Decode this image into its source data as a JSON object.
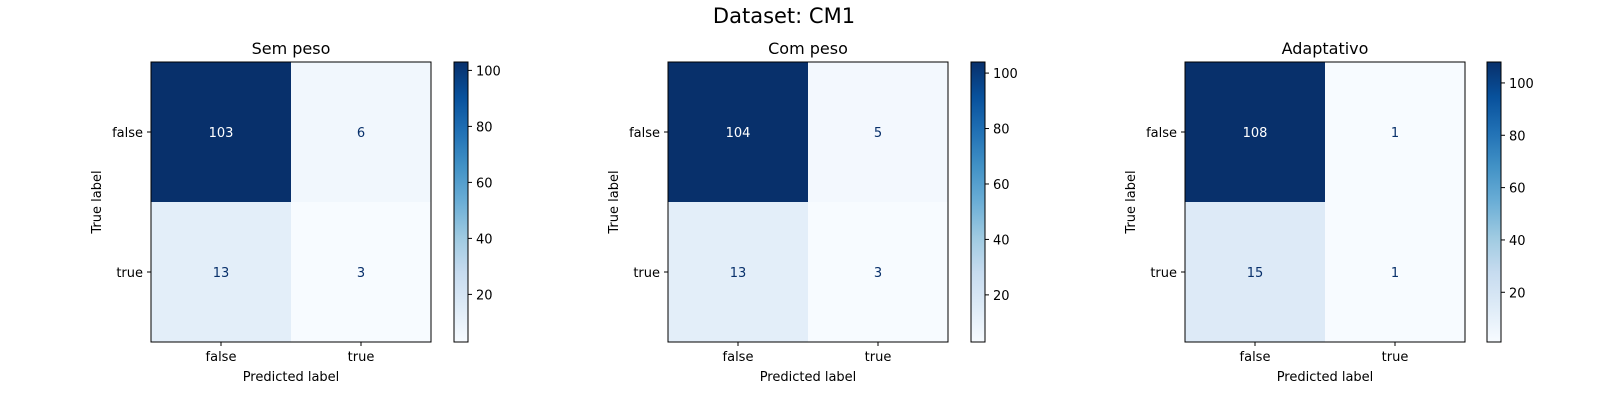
{
  "figure": {
    "title": "Dataset: CM1"
  },
  "chart_data": [
    {
      "type": "heatmap",
      "title": "Sem peso",
      "xlabel": "Predicted label",
      "ylabel": "True label",
      "x_categories": [
        "false",
        "true"
      ],
      "y_categories": [
        "false",
        "true"
      ],
      "values": [
        [
          103,
          6
        ],
        [
          13,
          3
        ]
      ],
      "colormap": "Blues",
      "colorbar_range": [
        3,
        103
      ],
      "colorbar_ticks": [
        20,
        40,
        60,
        80,
        100
      ]
    },
    {
      "type": "heatmap",
      "title": "Com peso",
      "xlabel": "Predicted label",
      "ylabel": "True label",
      "x_categories": [
        "false",
        "true"
      ],
      "y_categories": [
        "false",
        "true"
      ],
      "values": [
        [
          104,
          5
        ],
        [
          13,
          3
        ]
      ],
      "colormap": "Blues",
      "colorbar_range": [
        3,
        104
      ],
      "colorbar_ticks": [
        20,
        40,
        60,
        80,
        100
      ]
    },
    {
      "type": "heatmap",
      "title": "Adaptativo",
      "xlabel": "Predicted label",
      "ylabel": "True label",
      "x_categories": [
        "false",
        "true"
      ],
      "y_categories": [
        "false",
        "true"
      ],
      "values": [
        [
          108,
          1
        ],
        [
          15,
          1
        ]
      ],
      "colormap": "Blues",
      "colorbar_range": [
        1,
        108
      ],
      "colorbar_ticks": [
        20,
        40,
        60,
        80,
        100
      ]
    }
  ]
}
